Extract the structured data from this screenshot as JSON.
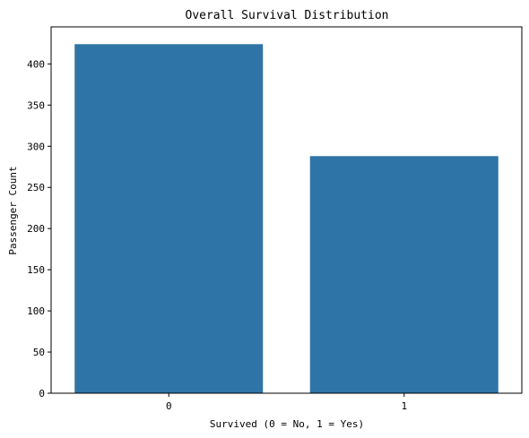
{
  "chart_data": {
    "type": "bar",
    "title": "Overall Survival Distribution",
    "xlabel": "Survived (0 = No, 1 = Yes)",
    "ylabel": "Passenger Count",
    "categories": [
      "0",
      "1"
    ],
    "values": [
      424,
      288
    ],
    "ylim": [
      0,
      445
    ],
    "yticks": [
      0,
      50,
      100,
      150,
      200,
      250,
      300,
      350,
      400
    ],
    "grid": false,
    "bar_color": "#2e74a6"
  }
}
